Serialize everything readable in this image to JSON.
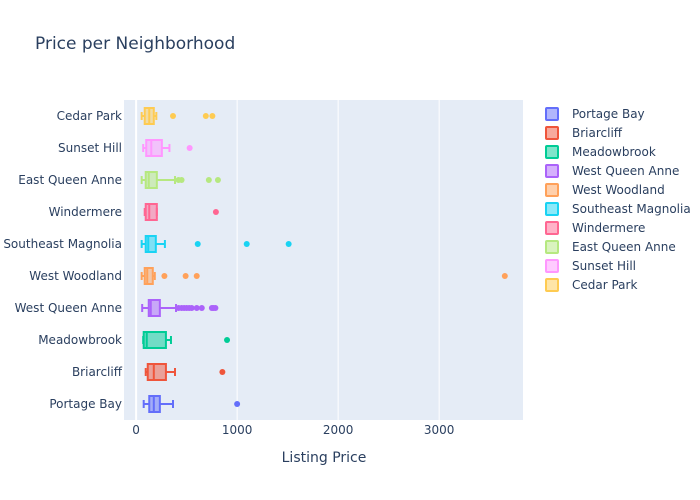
{
  "chart_data": {
    "type": "box",
    "orientation": "horizontal",
    "title": "Price per Neighborhood",
    "xlabel": "Listing Price",
    "ylabel": "",
    "xlim": [
      -120,
      3830
    ],
    "xticks": [
      0,
      1000,
      2000,
      3000
    ],
    "xtick_labels": [
      "0",
      "1000",
      "2000",
      "3000"
    ],
    "grid": true,
    "legend_position": "right",
    "series": [
      {
        "name": "Portage Bay",
        "color": "#636efa",
        "whisker_low": 75,
        "q1": 130,
        "median": 175,
        "q3": 235,
        "whisker_high": 365,
        "outliers": [
          1000
        ]
      },
      {
        "name": "Briarcliff",
        "color": "#ef553b",
        "whisker_low": 95,
        "q1": 115,
        "median": 175,
        "q3": 295,
        "whisker_high": 385,
        "outliers": [
          854
        ]
      },
      {
        "name": "Meadowbrook",
        "color": "#00cc96",
        "whisker_low": 70,
        "q1": 75,
        "median": 105,
        "q3": 295,
        "whisker_high": 345,
        "outliers": [
          900
        ]
      },
      {
        "name": "West Queen Anne",
        "color": "#ab63fa",
        "whisker_low": 60,
        "q1": 125,
        "median": 145,
        "q3": 235,
        "whisker_high": 395,
        "outliers": [
          420,
          450,
          475,
          500,
          525,
          550,
          600,
          650,
          750,
          765,
          785
        ]
      },
      {
        "name": "West Woodland",
        "color": "#ffa15a",
        "whisker_low": 55,
        "q1": 85,
        "median": 110,
        "q3": 165,
        "whisker_high": 185,
        "outliers": [
          280,
          490,
          600,
          3650
        ]
      },
      {
        "name": "Southeast Magnolia",
        "color": "#19d3f3",
        "whisker_low": 55,
        "q1": 95,
        "median": 120,
        "q3": 195,
        "whisker_high": 285,
        "outliers": [
          610,
          1095,
          1510
        ]
      },
      {
        "name": "Windermere",
        "color": "#ff6692",
        "whisker_low": 85,
        "q1": 95,
        "median": 130,
        "q3": 205,
        "whisker_high": 205,
        "outliers": [
          790
        ]
      },
      {
        "name": "East Queen Anne",
        "color": "#b6e880",
        "whisker_low": 55,
        "q1": 95,
        "median": 125,
        "q3": 205,
        "whisker_high": 385,
        "outliers": [
          420,
          450,
          720,
          810
        ]
      },
      {
        "name": "Sunset Hill",
        "color": "#ff97ff",
        "whisker_low": 70,
        "q1": 100,
        "median": 150,
        "q3": 255,
        "whisker_high": 330,
        "outliers": [
          530
        ]
      },
      {
        "name": "Cedar Park",
        "color": "#fecb52",
        "whisker_low": 55,
        "q1": 85,
        "median": 130,
        "q3": 175,
        "whisker_high": 200,
        "outliers": [
          365,
          690,
          755
        ]
      }
    ]
  }
}
